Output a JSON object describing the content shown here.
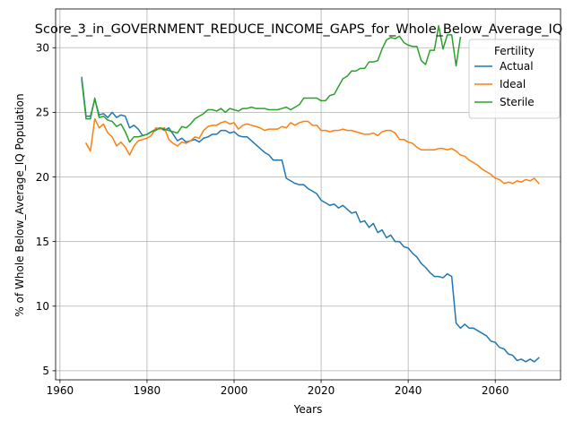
{
  "chart_data": {
    "type": "line",
    "title": "Score_3_in_GOVERNMENT_REDUCE_INCOME_GAPS_for_Whole_Below_Average_IQ",
    "xlabel": "Years",
    "ylabel": "% of Whole Below_Average_IQ Population",
    "xlim": [
      1959,
      2075
    ],
    "ylim": [
      4.3,
      33.0
    ],
    "xticks": [
      1960,
      1980,
      2000,
      2020,
      2040,
      2060
    ],
    "yticks": [
      5,
      10,
      15,
      20,
      25,
      30
    ],
    "grid": true,
    "legend": {
      "title": "Fertility",
      "position": "top-right"
    },
    "series": [
      {
        "name": "Actual",
        "color": "#1f77b4",
        "points": [
          [
            1965,
            27.7
          ],
          [
            1966,
            24.7
          ],
          [
            1967,
            24.7
          ],
          [
            1968,
            26.0
          ],
          [
            1969,
            24.8
          ],
          [
            1970,
            24.9
          ],
          [
            1971,
            24.6
          ],
          [
            1972,
            25.0
          ],
          [
            1973,
            24.6
          ],
          [
            1974,
            24.8
          ],
          [
            1975,
            24.7
          ],
          [
            1976,
            23.8
          ],
          [
            1977,
            24.0
          ],
          [
            1978,
            23.7
          ],
          [
            1979,
            23.2
          ],
          [
            1980,
            23.3
          ],
          [
            1981,
            23.5
          ],
          [
            1982,
            23.7
          ],
          [
            1983,
            23.8
          ],
          [
            1984,
            23.6
          ],
          [
            1985,
            23.8
          ],
          [
            1986,
            23.3
          ],
          [
            1987,
            22.8
          ],
          [
            1988,
            23.0
          ],
          [
            1989,
            22.7
          ],
          [
            1990,
            22.8
          ],
          [
            1991,
            22.9
          ],
          [
            1992,
            22.7
          ],
          [
            1993,
            23.0
          ],
          [
            1994,
            23.1
          ],
          [
            1995,
            23.3
          ],
          [
            1996,
            23.3
          ],
          [
            1997,
            23.6
          ],
          [
            1998,
            23.6
          ],
          [
            1999,
            23.4
          ],
          [
            2000,
            23.5
          ],
          [
            2001,
            23.2
          ],
          [
            2002,
            23.1
          ],
          [
            2003,
            23.1
          ],
          [
            2004,
            22.8
          ],
          [
            2005,
            22.5
          ],
          [
            2006,
            22.2
          ],
          [
            2007,
            21.9
          ],
          [
            2008,
            21.7
          ],
          [
            2009,
            21.3
          ],
          [
            2010,
            21.3
          ],
          [
            2011,
            21.3
          ],
          [
            2012,
            19.9
          ],
          [
            2013,
            19.7
          ],
          [
            2014,
            19.5
          ],
          [
            2015,
            19.4
          ],
          [
            2016,
            19.4
          ],
          [
            2017,
            19.1
          ],
          [
            2018,
            18.9
          ],
          [
            2019,
            18.7
          ],
          [
            2020,
            18.2
          ],
          [
            2021,
            18.0
          ],
          [
            2022,
            17.8
          ],
          [
            2023,
            17.9
          ],
          [
            2024,
            17.6
          ],
          [
            2025,
            17.8
          ],
          [
            2026,
            17.5
          ],
          [
            2027,
            17.2
          ],
          [
            2028,
            17.3
          ],
          [
            2029,
            16.5
          ],
          [
            2030,
            16.6
          ],
          [
            2031,
            16.1
          ],
          [
            2032,
            16.4
          ],
          [
            2033,
            15.7
          ],
          [
            2034,
            15.9
          ],
          [
            2035,
            15.3
          ],
          [
            2036,
            15.5
          ],
          [
            2037,
            15.0
          ],
          [
            2038,
            15.0
          ],
          [
            2039,
            14.6
          ],
          [
            2040,
            14.5
          ],
          [
            2041,
            14.1
          ],
          [
            2042,
            13.8
          ],
          [
            2043,
            13.3
          ],
          [
            2044,
            13.0
          ],
          [
            2045,
            12.6
          ],
          [
            2046,
            12.3
          ],
          [
            2047,
            12.3
          ],
          [
            2048,
            12.2
          ],
          [
            2049,
            12.5
          ],
          [
            2050,
            12.3
          ],
          [
            2051,
            8.7
          ],
          [
            2052,
            8.3
          ],
          [
            2053,
            8.6
          ],
          [
            2054,
            8.3
          ],
          [
            2055,
            8.3
          ],
          [
            2056,
            8.1
          ],
          [
            2057,
            7.9
          ],
          [
            2058,
            7.7
          ],
          [
            2059,
            7.3
          ],
          [
            2060,
            7.2
          ],
          [
            2061,
            6.8
          ],
          [
            2062,
            6.7
          ],
          [
            2063,
            6.3
          ],
          [
            2064,
            6.2
          ],
          [
            2065,
            5.8
          ],
          [
            2066,
            5.9
          ],
          [
            2067,
            5.7
          ],
          [
            2068,
            5.9
          ],
          [
            2069,
            5.7
          ],
          [
            2070,
            6.0
          ]
        ]
      },
      {
        "name": "Ideal",
        "color": "#ff7f0e",
        "points": [
          [
            1966,
            22.6
          ],
          [
            1967,
            22.0
          ],
          [
            1968,
            24.5
          ],
          [
            1969,
            23.8
          ],
          [
            1970,
            24.1
          ],
          [
            1971,
            23.4
          ],
          [
            1972,
            23.1
          ],
          [
            1973,
            22.4
          ],
          [
            1974,
            22.7
          ],
          [
            1975,
            22.3
          ],
          [
            1976,
            21.7
          ],
          [
            1977,
            22.4
          ],
          [
            1978,
            22.8
          ],
          [
            1979,
            22.9
          ],
          [
            1980,
            23.0
          ],
          [
            1981,
            23.2
          ],
          [
            1982,
            23.8
          ],
          [
            1983,
            23.7
          ],
          [
            1984,
            23.8
          ],
          [
            1985,
            22.9
          ],
          [
            1986,
            22.6
          ],
          [
            1987,
            22.4
          ],
          [
            1988,
            22.7
          ],
          [
            1989,
            22.6
          ],
          [
            1990,
            22.8
          ],
          [
            1991,
            23.1
          ],
          [
            1992,
            23.0
          ],
          [
            1993,
            23.6
          ],
          [
            1994,
            23.9
          ],
          [
            1995,
            24.0
          ],
          [
            1996,
            24.0
          ],
          [
            1997,
            24.2
          ],
          [
            1998,
            24.3
          ],
          [
            1999,
            24.1
          ],
          [
            2000,
            24.2
          ],
          [
            2001,
            23.7
          ],
          [
            2002,
            24.0
          ],
          [
            2003,
            24.1
          ],
          [
            2004,
            24.0
          ],
          [
            2005,
            23.9
          ],
          [
            2006,
            23.8
          ],
          [
            2007,
            23.6
          ],
          [
            2008,
            23.7
          ],
          [
            2009,
            23.7
          ],
          [
            2010,
            23.7
          ],
          [
            2011,
            23.9
          ],
          [
            2012,
            23.8
          ],
          [
            2013,
            24.2
          ],
          [
            2014,
            24.0
          ],
          [
            2015,
            24.2
          ],
          [
            2016,
            24.3
          ],
          [
            2017,
            24.3
          ],
          [
            2018,
            24.0
          ],
          [
            2019,
            24.0
          ],
          [
            2020,
            23.6
          ],
          [
            2021,
            23.6
          ],
          [
            2022,
            23.5
          ],
          [
            2023,
            23.6
          ],
          [
            2024,
            23.6
          ],
          [
            2025,
            23.7
          ],
          [
            2026,
            23.6
          ],
          [
            2027,
            23.6
          ],
          [
            2028,
            23.5
          ],
          [
            2029,
            23.4
          ],
          [
            2030,
            23.3
          ],
          [
            2031,
            23.3
          ],
          [
            2032,
            23.4
          ],
          [
            2033,
            23.2
          ],
          [
            2034,
            23.5
          ],
          [
            2035,
            23.6
          ],
          [
            2036,
            23.6
          ],
          [
            2037,
            23.4
          ],
          [
            2038,
            22.9
          ],
          [
            2039,
            22.9
          ],
          [
            2040,
            22.7
          ],
          [
            2041,
            22.6
          ],
          [
            2042,
            22.3
          ],
          [
            2043,
            22.1
          ],
          [
            2044,
            22.1
          ],
          [
            2045,
            22.1
          ],
          [
            2046,
            22.1
          ],
          [
            2047,
            22.2
          ],
          [
            2048,
            22.2
          ],
          [
            2049,
            22.1
          ],
          [
            2050,
            22.2
          ],
          [
            2051,
            22.0
          ],
          [
            2052,
            21.7
          ],
          [
            2053,
            21.6
          ],
          [
            2054,
            21.3
          ],
          [
            2055,
            21.1
          ],
          [
            2056,
            20.9
          ],
          [
            2057,
            20.6
          ],
          [
            2058,
            20.4
          ],
          [
            2059,
            20.2
          ],
          [
            2060,
            19.9
          ],
          [
            2061,
            19.8
          ],
          [
            2062,
            19.5
          ],
          [
            2063,
            19.6
          ],
          [
            2064,
            19.5
          ],
          [
            2065,
            19.7
          ],
          [
            2066,
            19.6
          ],
          [
            2067,
            19.8
          ],
          [
            2068,
            19.7
          ],
          [
            2069,
            19.9
          ],
          [
            2070,
            19.5
          ]
        ]
      },
      {
        "name": "Sterile",
        "color": "#2ca02c",
        "points": [
          [
            1965,
            27.5
          ],
          [
            1966,
            24.5
          ],
          [
            1967,
            24.5
          ],
          [
            1968,
            26.1
          ],
          [
            1969,
            24.6
          ],
          [
            1970,
            24.7
          ],
          [
            1971,
            24.4
          ],
          [
            1972,
            24.3
          ],
          [
            1973,
            23.9
          ],
          [
            1974,
            24.1
          ],
          [
            1975,
            23.5
          ],
          [
            1976,
            22.7
          ],
          [
            1977,
            23.1
          ],
          [
            1978,
            23.1
          ],
          [
            1979,
            23.2
          ],
          [
            1980,
            23.3
          ],
          [
            1981,
            23.5
          ],
          [
            1982,
            23.6
          ],
          [
            1983,
            23.8
          ],
          [
            1984,
            23.7
          ],
          [
            1985,
            23.6
          ],
          [
            1986,
            23.5
          ],
          [
            1987,
            23.4
          ],
          [
            1988,
            23.9
          ],
          [
            1989,
            23.8
          ],
          [
            1990,
            24.1
          ],
          [
            1991,
            24.5
          ],
          [
            1992,
            24.7
          ],
          [
            1993,
            24.9
          ],
          [
            1994,
            25.2
          ],
          [
            1995,
            25.2
          ],
          [
            1996,
            25.1
          ],
          [
            1997,
            25.3
          ],
          [
            1998,
            25.0
          ],
          [
            1999,
            25.3
          ],
          [
            2000,
            25.2
          ],
          [
            2001,
            25.1
          ],
          [
            2002,
            25.3
          ],
          [
            2003,
            25.3
          ],
          [
            2004,
            25.4
          ],
          [
            2005,
            25.3
          ],
          [
            2006,
            25.3
          ],
          [
            2007,
            25.3
          ],
          [
            2008,
            25.2
          ],
          [
            2009,
            25.2
          ],
          [
            2010,
            25.2
          ],
          [
            2011,
            25.3
          ],
          [
            2012,
            25.4
          ],
          [
            2013,
            25.2
          ],
          [
            2014,
            25.4
          ],
          [
            2015,
            25.6
          ],
          [
            2016,
            26.1
          ],
          [
            2017,
            26.1
          ],
          [
            2018,
            26.1
          ],
          [
            2019,
            26.1
          ],
          [
            2020,
            25.9
          ],
          [
            2021,
            25.9
          ],
          [
            2022,
            26.3
          ],
          [
            2023,
            26.4
          ],
          [
            2024,
            27.0
          ],
          [
            2025,
            27.6
          ],
          [
            2026,
            27.8
          ],
          [
            2027,
            28.2
          ],
          [
            2028,
            28.2
          ],
          [
            2029,
            28.4
          ],
          [
            2030,
            28.4
          ],
          [
            2031,
            28.9
          ],
          [
            2032,
            28.9
          ],
          [
            2033,
            29.0
          ],
          [
            2034,
            29.9
          ],
          [
            2035,
            30.6
          ],
          [
            2036,
            30.8
          ],
          [
            2037,
            30.7
          ],
          [
            2038,
            30.9
          ],
          [
            2039,
            30.4
          ],
          [
            2040,
            30.2
          ],
          [
            2041,
            30.1
          ],
          [
            2042,
            30.1
          ],
          [
            2043,
            29.0
          ],
          [
            2044,
            28.7
          ],
          [
            2045,
            29.8
          ],
          [
            2046,
            29.8
          ],
          [
            2047,
            31.7
          ],
          [
            2048,
            29.9
          ],
          [
            2049,
            31.0
          ],
          [
            2050,
            31.0
          ],
          [
            2051,
            28.6
          ],
          [
            2052,
            30.8
          ]
        ]
      }
    ]
  }
}
